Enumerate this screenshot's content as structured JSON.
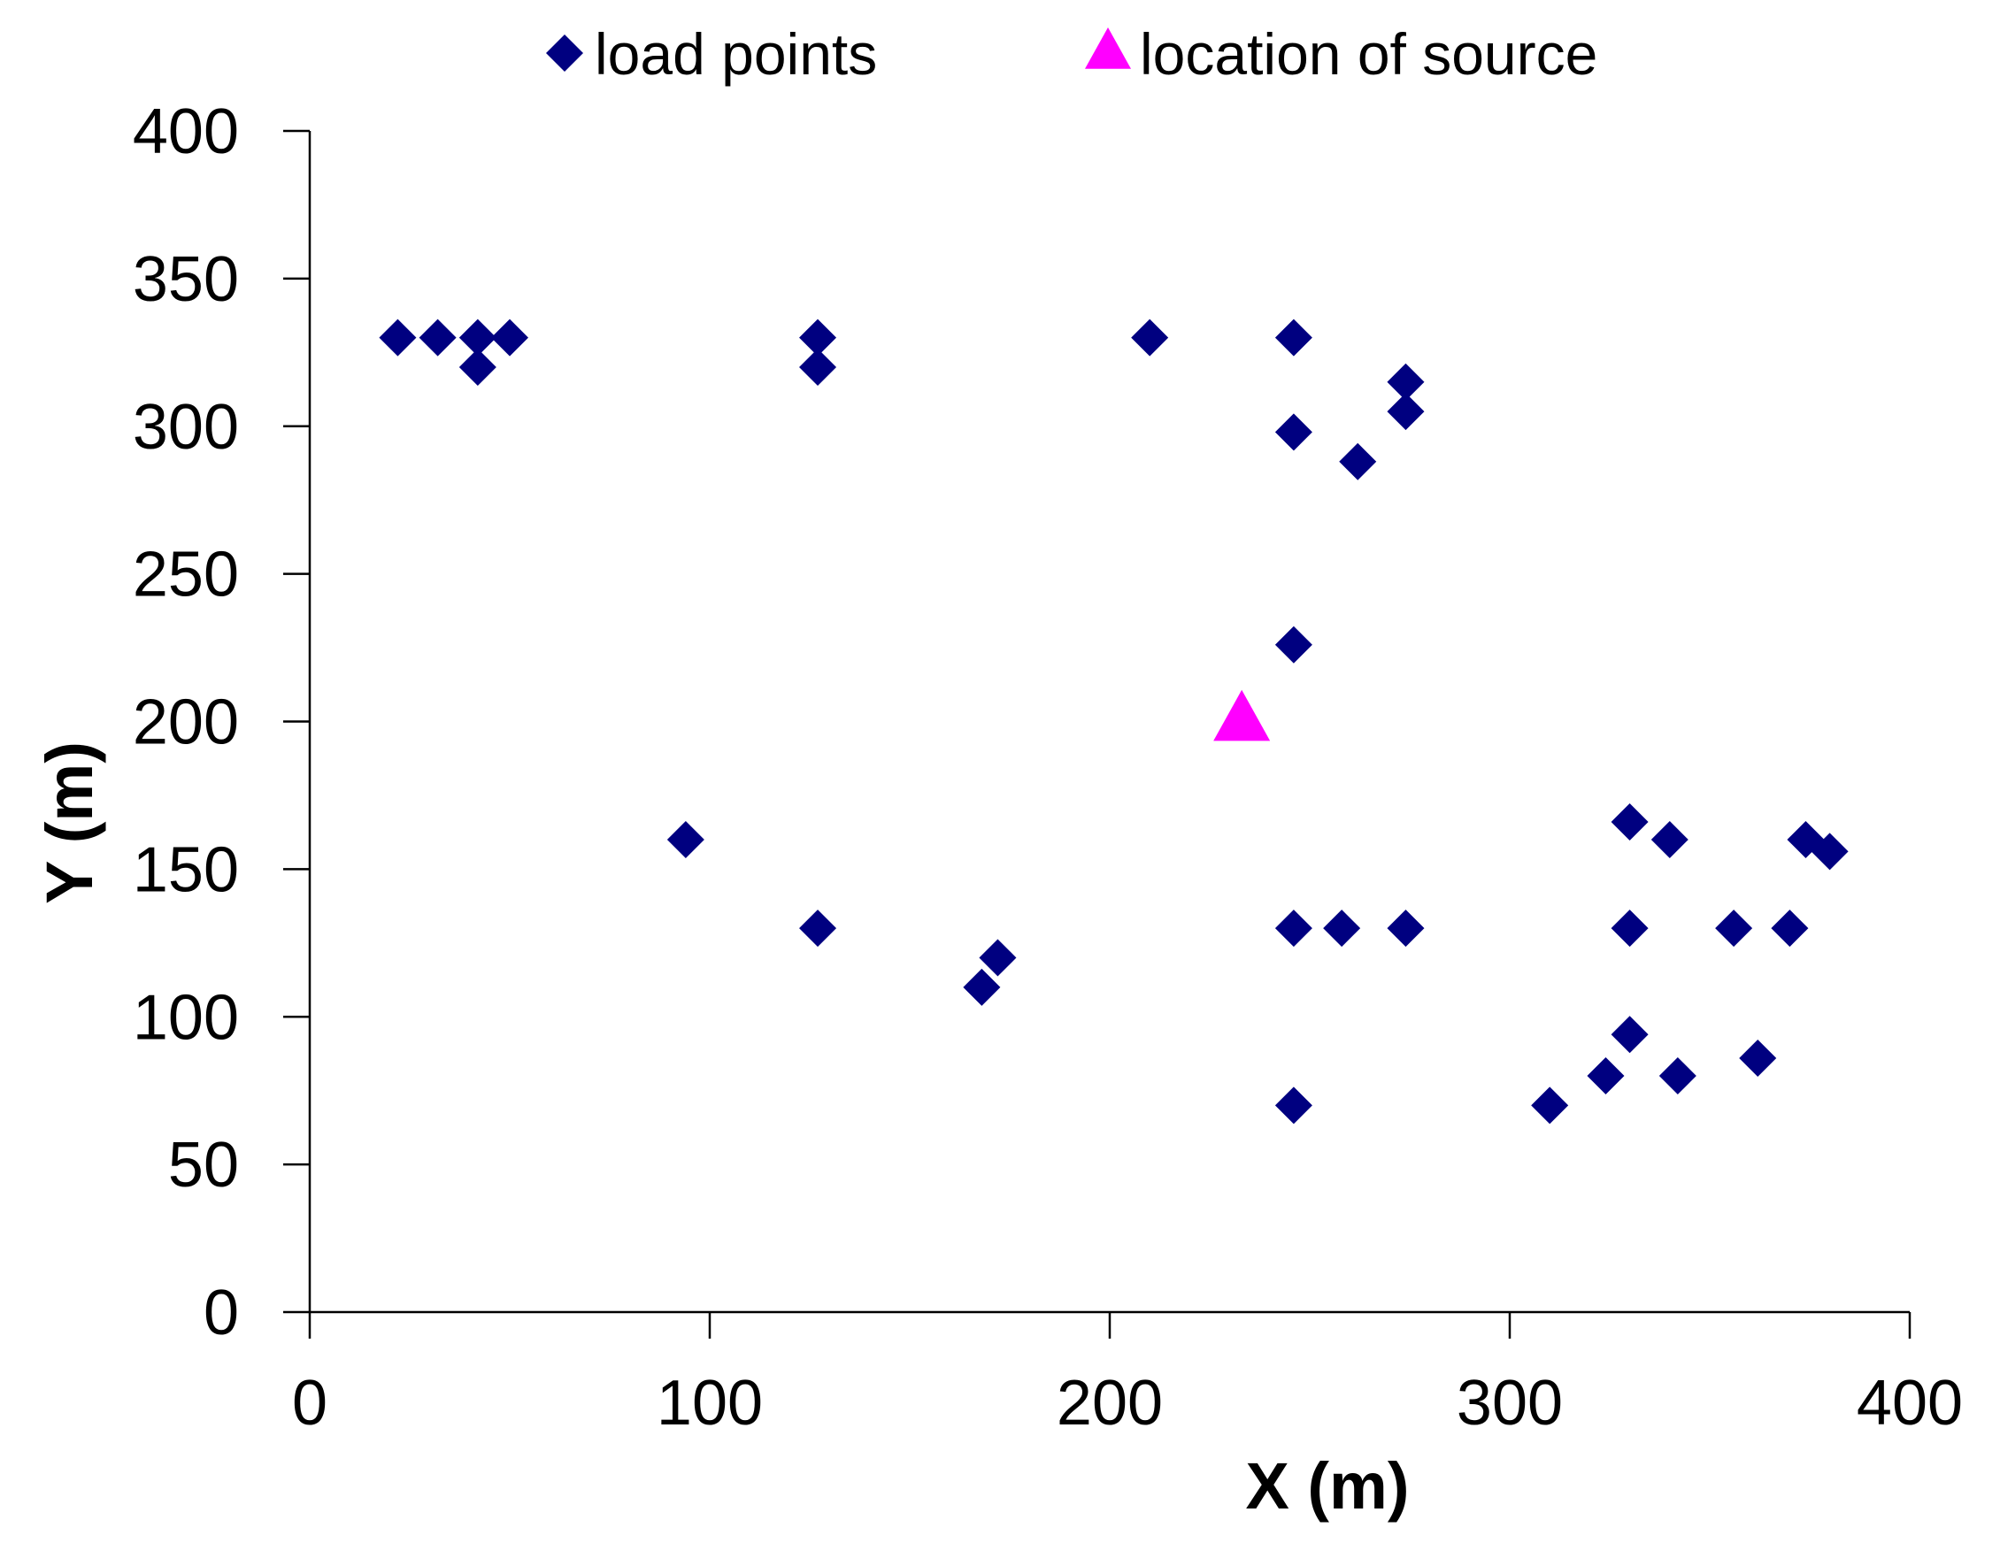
{
  "chart_data": {
    "type": "scatter",
    "title": "",
    "xlabel": "X (m)",
    "ylabel": "Y (m)",
    "xlim": [
      0,
      400
    ],
    "ylim": [
      0,
      400
    ],
    "xticks": [
      0,
      100,
      200,
      300,
      400
    ],
    "yticks": [
      0,
      50,
      100,
      150,
      200,
      250,
      300,
      350,
      400
    ],
    "grid": false,
    "legend_position": "top-center",
    "series": [
      {
        "name": "load points",
        "marker": "diamond",
        "color": "#000080",
        "points": [
          [
            22,
            330
          ],
          [
            32,
            330
          ],
          [
            42,
            330
          ],
          [
            50,
            330
          ],
          [
            42,
            320
          ],
          [
            127,
            330
          ],
          [
            127,
            320
          ],
          [
            210,
            330
          ],
          [
            246,
            330
          ],
          [
            246,
            298
          ],
          [
            262,
            288
          ],
          [
            274,
            315
          ],
          [
            274,
            305
          ],
          [
            246,
            226
          ],
          [
            94,
            160
          ],
          [
            127,
            130
          ],
          [
            168,
            110
          ],
          [
            172,
            120
          ],
          [
            246,
            130
          ],
          [
            258,
            130
          ],
          [
            274,
            130
          ],
          [
            246,
            70
          ],
          [
            310,
            70
          ],
          [
            324,
            80
          ],
          [
            330,
            94
          ],
          [
            342,
            80
          ],
          [
            330,
            166
          ],
          [
            340,
            160
          ],
          [
            330,
            130
          ],
          [
            356,
            130
          ],
          [
            362,
            86
          ],
          [
            370,
            130
          ],
          [
            374,
            160
          ],
          [
            380,
            156
          ]
        ]
      },
      {
        "name": "location of source",
        "marker": "triangle",
        "color": "#FF00FF",
        "points": [
          [
            233,
            200
          ]
        ]
      }
    ]
  }
}
